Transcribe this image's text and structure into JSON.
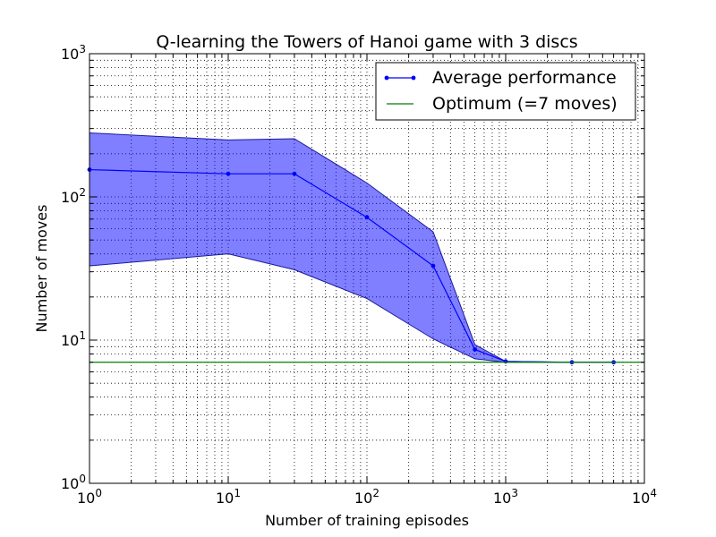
{
  "chart_data": {
    "type": "line",
    "title": "Q-learning the Towers of Hanoi game with 3 discs",
    "xlabel": "Number of training episodes",
    "ylabel": "Number of moves",
    "xscale": "log",
    "yscale": "log",
    "xlim": [
      1,
      10000
    ],
    "ylim": [
      1,
      1000
    ],
    "grid": "on (major and minor, dotted)",
    "legend_position": "top-right",
    "x_ticks": [
      {
        "base": "10",
        "exp": "0",
        "value": 1
      },
      {
        "base": "10",
        "exp": "1",
        "value": 10
      },
      {
        "base": "10",
        "exp": "2",
        "value": 100
      },
      {
        "base": "10",
        "exp": "3",
        "value": 1000
      },
      {
        "base": "10",
        "exp": "4",
        "value": 10000
      }
    ],
    "y_ticks": [
      {
        "base": "10",
        "exp": "0",
        "value": 1
      },
      {
        "base": "10",
        "exp": "1",
        "value": 10
      },
      {
        "base": "10",
        "exp": "2",
        "value": 100
      },
      {
        "base": "10",
        "exp": "3",
        "value": 1000
      }
    ],
    "x": [
      1,
      10,
      30,
      100,
      300,
      600,
      1000,
      3000,
      6000
    ],
    "series": [
      {
        "name": "Average performance",
        "type": "line",
        "marker": "dot",
        "color": "#0000ff",
        "values": [
          155,
          145,
          145,
          72,
          33,
          8.6,
          7.1,
          7.0,
          7.0
        ]
      },
      {
        "name": "Optimum (=7 moves)",
        "type": "hline",
        "color": "#008000",
        "y": 7
      }
    ],
    "band": {
      "color": "#0000ff",
      "opacity": 0.5,
      "upper": [
        280,
        250,
        255,
        125,
        57,
        9.3,
        7.1,
        7.0,
        7.0
      ],
      "lower": [
        33,
        40,
        31,
        19.5,
        10.2,
        7.4,
        7.0,
        7.0,
        7.0
      ]
    }
  }
}
